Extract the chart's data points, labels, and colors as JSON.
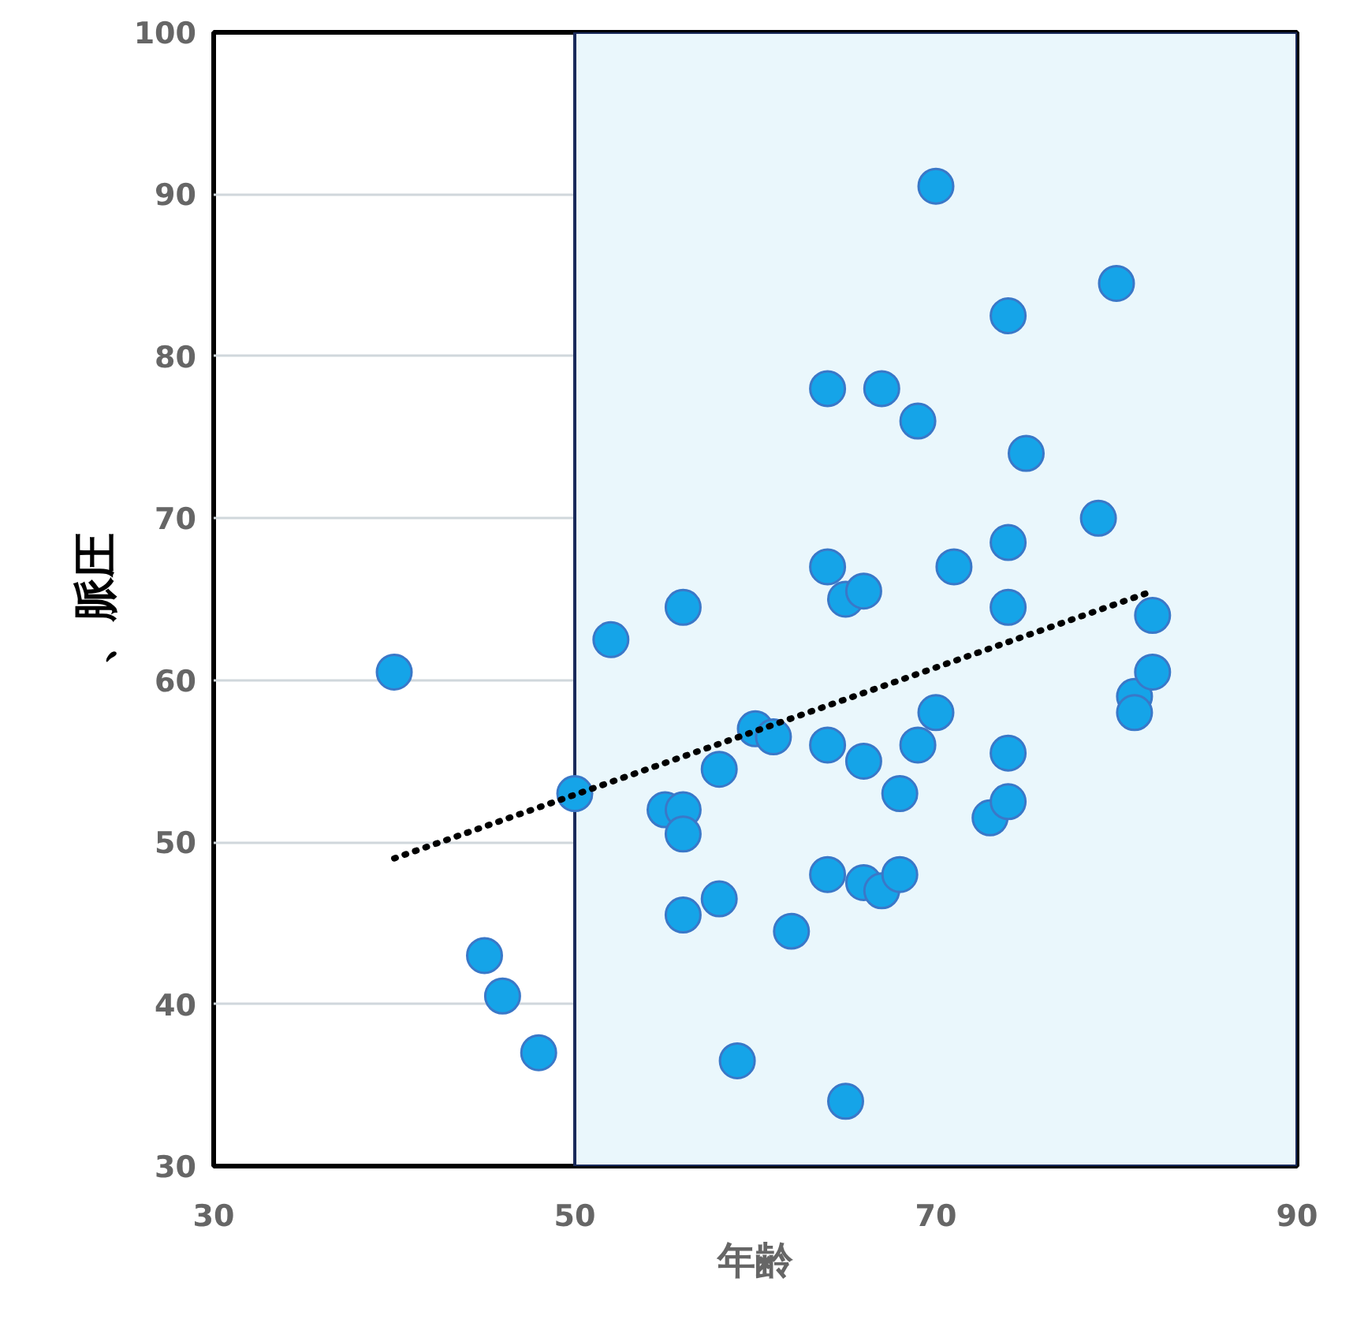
{
  "chart_data": {
    "type": "scatter",
    "xlabel": "年齢",
    "ylabel": "、脈圧",
    "xlim": [
      30,
      90
    ],
    "ylim": [
      30,
      100
    ],
    "xticks": [
      30,
      50,
      70,
      90
    ],
    "yticks": [
      30,
      40,
      50,
      60,
      70,
      80,
      90,
      100
    ],
    "grid": true,
    "marker": "circle",
    "bands": [
      {
        "axis": "x",
        "from": 50,
        "to": 90,
        "color": "#eaf7fc"
      }
    ],
    "series": [
      {
        "color": "#15a4e8",
        "x": [
          40,
          45,
          46,
          48,
          50,
          52,
          55,
          56,
          56,
          56,
          56,
          58,
          58,
          59,
          60,
          61,
          62,
          64,
          64,
          64,
          64,
          65,
          66,
          65,
          66,
          66,
          67,
          67,
          68,
          68,
          69,
          69,
          70,
          70,
          71,
          73,
          74,
          74,
          74,
          74,
          74,
          75,
          79,
          80,
          81,
          81,
          82,
          82
        ],
        "values": [
          60.5,
          43,
          40.5,
          37,
          53,
          62.5,
          52,
          52,
          50.5,
          64.5,
          45.5,
          54.5,
          46.5,
          36.5,
          57,
          56.5,
          44.5,
          78,
          67,
          56,
          48,
          65,
          65.5,
          34,
          55,
          47.5,
          78,
          47,
          53,
          48,
          76,
          56,
          90.5,
          58,
          67,
          51.5,
          82.5,
          68.5,
          64.5,
          55.5,
          52.5,
          74,
          70,
          84.5,
          59,
          58,
          64,
          60.5
        ]
      },
      {
        "type": "line",
        "color": "#000000",
        "line_style": "dotted",
        "marker": "none",
        "x": [
          40,
          82
        ],
        "values": [
          49,
          65.5
        ]
      }
    ]
  }
}
